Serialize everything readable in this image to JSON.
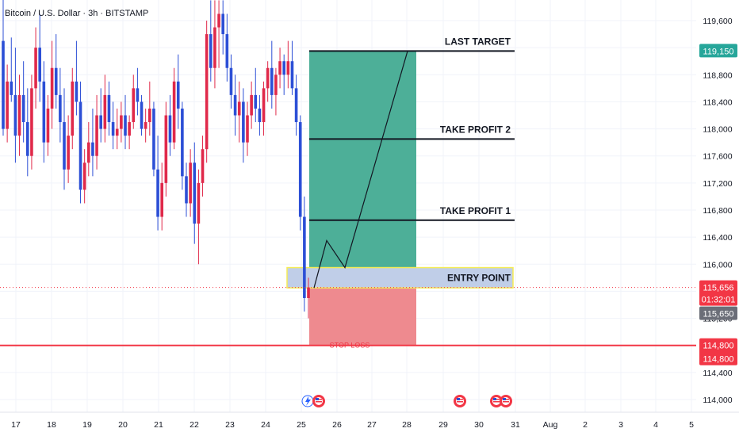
{
  "header": {
    "symbol_title": "Bitcoin / U.S. Dollar · 3h · BITSTAMP"
  },
  "annotations": {
    "last_target": "LAST TARGET",
    "take_profit_2": "TAKE PROFIT 2",
    "take_profit_1": "TAKE PROFIT 1",
    "entry_point": "ENTRY POINT",
    "stop_loss": "STOP LOSS"
  },
  "price_badges": {
    "target": "119,150",
    "current_price": "115,656",
    "countdown": "01:32:01",
    "crosshair": "115,650",
    "stop_a": "114,800",
    "stop_b": "114,800"
  },
  "colors": {
    "up": "#e0294a",
    "down": "#2c4fd6",
    "profit_zone": "#4daf98",
    "loss_zone": "#ee8a8f",
    "entry_zone": "#b9c9e6",
    "entry_border": "#f5ec55",
    "stop_line": "#f23645",
    "target_badge": "#26a69a",
    "current_badge": "#f23645",
    "crosshair_badge": "#6b6e78"
  },
  "chart_data": {
    "type": "candlestick",
    "y_ticks": [
      119600,
      119200,
      118800,
      118400,
      118000,
      117600,
      117200,
      116800,
      116400,
      116000,
      115600,
      115200,
      114800,
      114400,
      114000
    ],
    "y_tick_labels": [
      "119,600",
      "119,200",
      "118,800",
      "118,400",
      "118,000",
      "117,600",
      "117,200",
      "116,800",
      "116,400",
      "116,000",
      "115,600",
      "115,200",
      "114,800",
      "114,400",
      "114,000"
    ],
    "x_tick_labels": [
      "17",
      "18",
      "19",
      "20",
      "21",
      "22",
      "23",
      "24",
      "25",
      "26",
      "27",
      "28",
      "29",
      "30",
      "31",
      "Aug",
      "2",
      "3",
      "4",
      "5"
    ],
    "ylim": [
      113870,
      119900
    ],
    "levels": {
      "last_target": 119150,
      "take_profit_2": 117850,
      "take_profit_1": 116650,
      "entry_top": 115950,
      "entry_bottom": 115650,
      "stop_loss": 114800,
      "current_price": 115656
    },
    "projected_path": [
      115650,
      116350,
      115950,
      119150
    ],
    "ohlc": [
      [
        119300,
        119950,
        117900,
        118000
      ],
      [
        118000,
        118950,
        117800,
        118700
      ],
      [
        118700,
        119350,
        118400,
        118500
      ],
      [
        118500,
        119200,
        117500,
        117900
      ],
      [
        117900,
        118800,
        117600,
        118500
      ],
      [
        118500,
        119000,
        117800,
        118100
      ],
      [
        118100,
        118600,
        117300,
        117600
      ],
      [
        117600,
        118800,
        117400,
        118600
      ],
      [
        118600,
        119500,
        118300,
        119200
      ],
      [
        119200,
        119700,
        118400,
        118700
      ],
      [
        118700,
        119000,
        117500,
        117800
      ],
      [
        117800,
        118500,
        117600,
        118300
      ],
      [
        118300,
        119300,
        118000,
        118900
      ],
      [
        118900,
        119400,
        118300,
        118500
      ],
      [
        118500,
        118900,
        117800,
        118100
      ],
      [
        118100,
        118600,
        117100,
        117400
      ],
      [
        117400,
        118200,
        117200,
        117900
      ],
      [
        117900,
        118900,
        117700,
        118700
      ],
      [
        118700,
        119300,
        118200,
        118400
      ],
      [
        118400,
        118700,
        116900,
        117100
      ],
      [
        117100,
        117700,
        116900,
        117500
      ],
      [
        117500,
        118100,
        117300,
        117800
      ],
      [
        117800,
        118300,
        117300,
        117600
      ],
      [
        117600,
        118500,
        117400,
        118200
      ],
      [
        118200,
        118600,
        117800,
        118000
      ],
      [
        118000,
        118800,
        117800,
        118500
      ],
      [
        118500,
        118700,
        117900,
        118100
      ],
      [
        118100,
        118400,
        117700,
        117900
      ],
      [
        117900,
        118300,
        117700,
        118000
      ],
      [
        118000,
        118400,
        117800,
        118200
      ],
      [
        118200,
        118500,
        117700,
        117900
      ],
      [
        117900,
        118200,
        117700,
        118100
      ],
      [
        118100,
        118800,
        118000,
        118600
      ],
      [
        118600,
        118900,
        118200,
        118400
      ],
      [
        118400,
        118500,
        117900,
        118000
      ],
      [
        118000,
        118300,
        117800,
        118100
      ],
      [
        118100,
        118700,
        117900,
        118300
      ],
      [
        118300,
        118400,
        117300,
        117400
      ],
      [
        117400,
        117900,
        116500,
        116700
      ],
      [
        116700,
        117500,
        116500,
        117200
      ],
      [
        117200,
        118400,
        117000,
        118200
      ],
      [
        118200,
        118500,
        117600,
        117800
      ],
      [
        117800,
        118900,
        117700,
        118700
      ],
      [
        118700,
        119100,
        118000,
        118300
      ],
      [
        118300,
        118400,
        117100,
        117300
      ],
      [
        117300,
        117500,
        116700,
        116900
      ],
      [
        116900,
        117700,
        116700,
        117500
      ],
      [
        117500,
        117800,
        116300,
        116600
      ],
      [
        116600,
        117400,
        116000,
        117200
      ],
      [
        117200,
        117900,
        117000,
        117700
      ],
      [
        117700,
        119600,
        117500,
        119400
      ],
      [
        119400,
        119900,
        118700,
        118900
      ],
      [
        118900,
        119900,
        118600,
        119500
      ],
      [
        119500,
        119900,
        118900,
        119700
      ],
      [
        119700,
        119900,
        119100,
        119400
      ],
      [
        119400,
        119700,
        118700,
        118900
      ],
      [
        118900,
        119100,
        118300,
        118500
      ],
      [
        118500,
        118800,
        117900,
        118200
      ],
      [
        118200,
        118700,
        117800,
        118400
      ],
      [
        118400,
        118600,
        117500,
        117800
      ],
      [
        117800,
        118400,
        117600,
        118200
      ],
      [
        118200,
        118700,
        118000,
        118500
      ],
      [
        118500,
        118900,
        118100,
        118300
      ],
      [
        118300,
        118500,
        117900,
        118100
      ],
      [
        118100,
        118700,
        117900,
        118600
      ],
      [
        118600,
        119000,
        118400,
        118900
      ],
      [
        118900,
        119300,
        118300,
        118500
      ],
      [
        118500,
        118900,
        118200,
        118800
      ],
      [
        118800,
        119200,
        118600,
        119000
      ],
      [
        119000,
        119100,
        118500,
        118800
      ],
      [
        118800,
        119300,
        118600,
        119000
      ],
      [
        119000,
        119300,
        118500,
        118600
      ],
      [
        118600,
        118800,
        117900,
        118100
      ],
      [
        118100,
        118200,
        116500,
        116700
      ],
      [
        116700,
        117000,
        115300,
        115500
      ],
      [
        115500,
        115800,
        115200,
        115656
      ]
    ]
  }
}
